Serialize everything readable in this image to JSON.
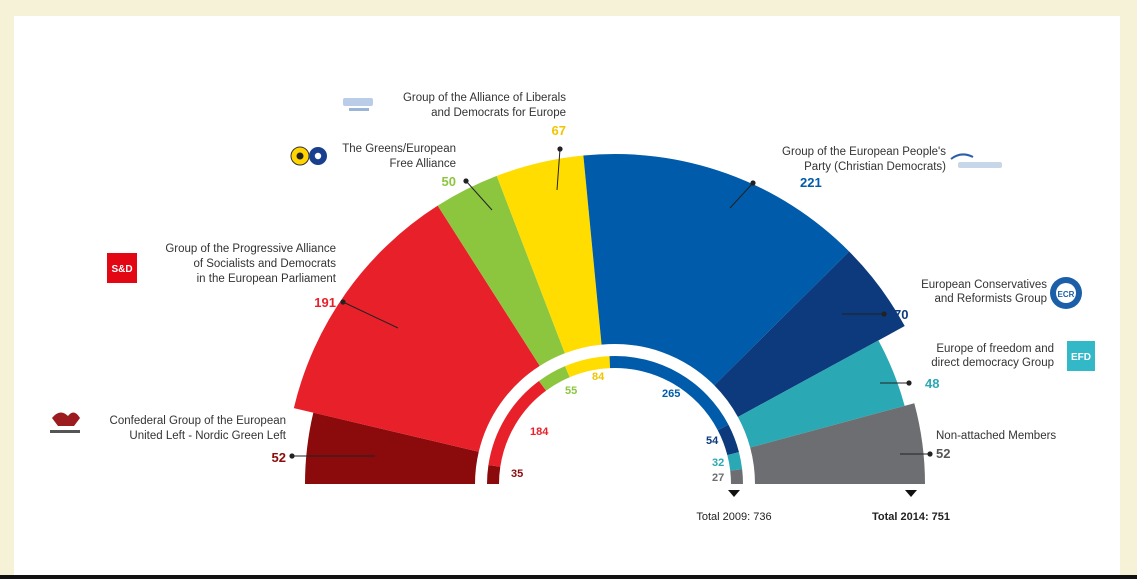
{
  "chart_data": {
    "type": "pie",
    "subtype": "parliament-semicircle",
    "totals": {
      "label_2009": "Total 2009: 736",
      "label_2014": "Total 2014: 751"
    },
    "groups": [
      {
        "key": "gue",
        "name_lines": [
          "Confederal Group of the European",
          "United Left - Nordic Green Left"
        ],
        "seats_2014": 52,
        "seats_2009": 35,
        "color": "#8b0a0c",
        "number_color": "#8b0a0c"
      },
      {
        "key": "sd",
        "name_lines": [
          "Group of the Progressive Alliance",
          "of Socialists and Democrats",
          "in the European Parliament"
        ],
        "seats_2014": 191,
        "seats_2009": 184,
        "color": "#e8202a",
        "number_color": "#e8202a"
      },
      {
        "key": "greens",
        "name_lines": [
          "The Greens/European",
          "Free Alliance"
        ],
        "seats_2014": 50,
        "seats_2009": 55,
        "color": "#8cc63f",
        "number_color": "#8cc63f"
      },
      {
        "key": "alde",
        "name_lines": [
          "Group of the Alliance of Liberals",
          "and Democrats for Europe"
        ],
        "seats_2014": 67,
        "seats_2009": 84,
        "color": "#ffdd00",
        "number_color": "#f2c400"
      },
      {
        "key": "epp",
        "name_lines": [
          "Group of the European People's",
          "Party (Christian Democrats)"
        ],
        "seats_2014": 221,
        "seats_2009": 265,
        "color": "#005baa",
        "number_color": "#005baa"
      },
      {
        "key": "ecr",
        "name_lines": [
          "European Conservatives",
          "and Reformists Group"
        ],
        "seats_2014": 70,
        "seats_2009": 54,
        "color": "#0c3a7d",
        "number_color": "#0c3a7d"
      },
      {
        "key": "efdd",
        "name_lines": [
          "Europe of freedom and",
          "direct democracy Group"
        ],
        "seats_2014": 48,
        "seats_2009": 32,
        "color": "#2aa9b4",
        "number_color": "#2aa9b4"
      },
      {
        "key": "ni",
        "name_lines": [
          "Non-attached Members"
        ],
        "seats_2014": 52,
        "seats_2009": 27,
        "color": "#6d6e71",
        "number_color": "#6d6e71"
      }
    ]
  },
  "logos": {
    "sd": "S&D",
    "ecr": "ECR",
    "efdd": "EFD"
  }
}
